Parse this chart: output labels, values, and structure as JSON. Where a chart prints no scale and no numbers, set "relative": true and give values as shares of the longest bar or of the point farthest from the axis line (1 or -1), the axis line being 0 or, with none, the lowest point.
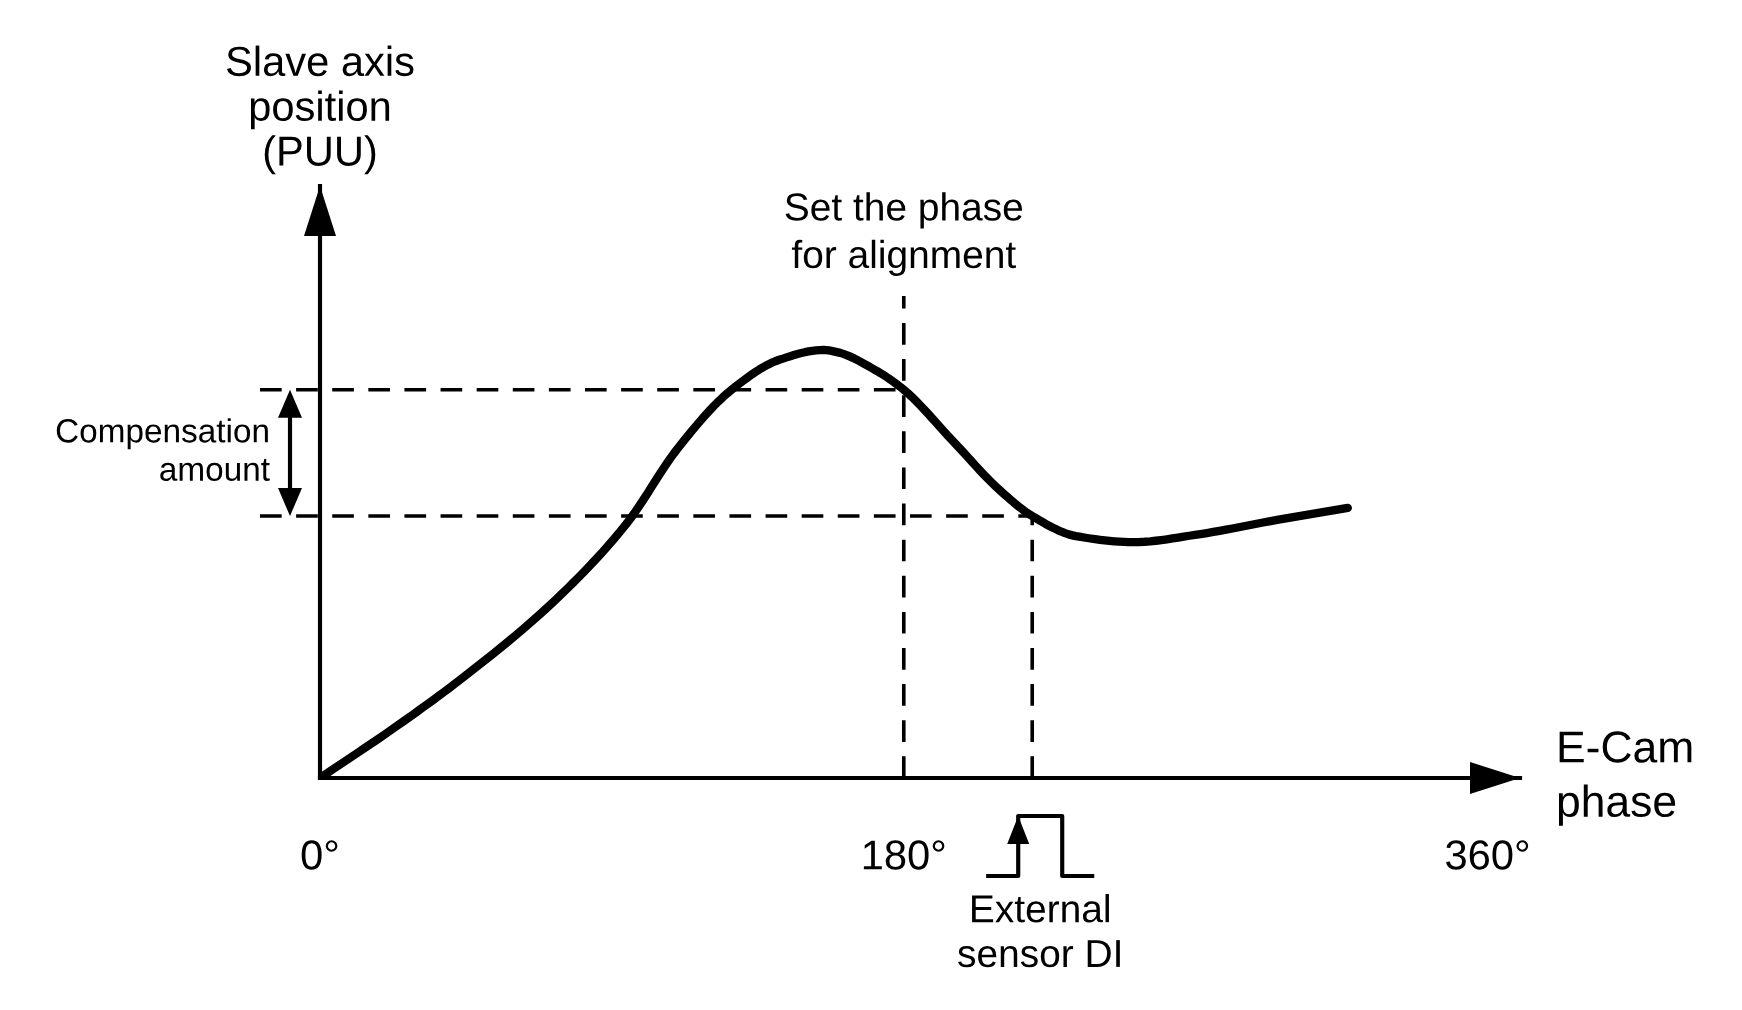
{
  "chart_data": {
    "type": "line",
    "relative": true,
    "xlabel": "E-Cam\nphase",
    "ylabel": "Slave axis\nposition\n(PUU)",
    "x": [
      0,
      23.6,
      43.1,
      72.6,
      94.4,
      110.4,
      126.9,
      141.6,
      155.2,
      159.4,
      171.2,
      180,
      194.8,
      209.5,
      219.6,
      233.1,
      250.8,
      271.5,
      295.1,
      316.9
    ],
    "series": [
      {
        "color": "#000000",
        "values": [
          0,
          0.121,
          0.229,
          0.416,
          0.593,
          0.771,
          0.907,
          0.977,
          1.0,
          0.995,
          0.953,
          0.907,
          0.79,
          0.673,
          0.612,
          0.565,
          0.551,
          0.57,
          0.603,
          0.631
        ]
      }
    ],
    "xlim": [
      0,
      370
    ],
    "xticks": [
      {
        "value": 0,
        "label": "0°"
      },
      {
        "value": 180,
        "label": "180°"
      },
      {
        "value": 360,
        "label": "360°"
      }
    ],
    "ref_lines": [
      {
        "axis": "x",
        "value": 180,
        "label": "Set the phase\nfor alignment",
        "line_style": "dashed",
        "color": "#000000"
      },
      {
        "axis": "x",
        "value": 219.6,
        "line_style": "dashed",
        "color": "#000000"
      },
      {
        "axis": "y",
        "value": 0.907,
        "line_style": "dashed",
        "color": "#000000"
      },
      {
        "axis": "y",
        "value": 0.612,
        "line_style": "dashed",
        "color": "#000000"
      }
    ],
    "annotations": [
      "Compensation\namount",
      "External\nsensor DI"
    ],
    "grid": false,
    "marker": "none",
    "line_style": "solid"
  }
}
